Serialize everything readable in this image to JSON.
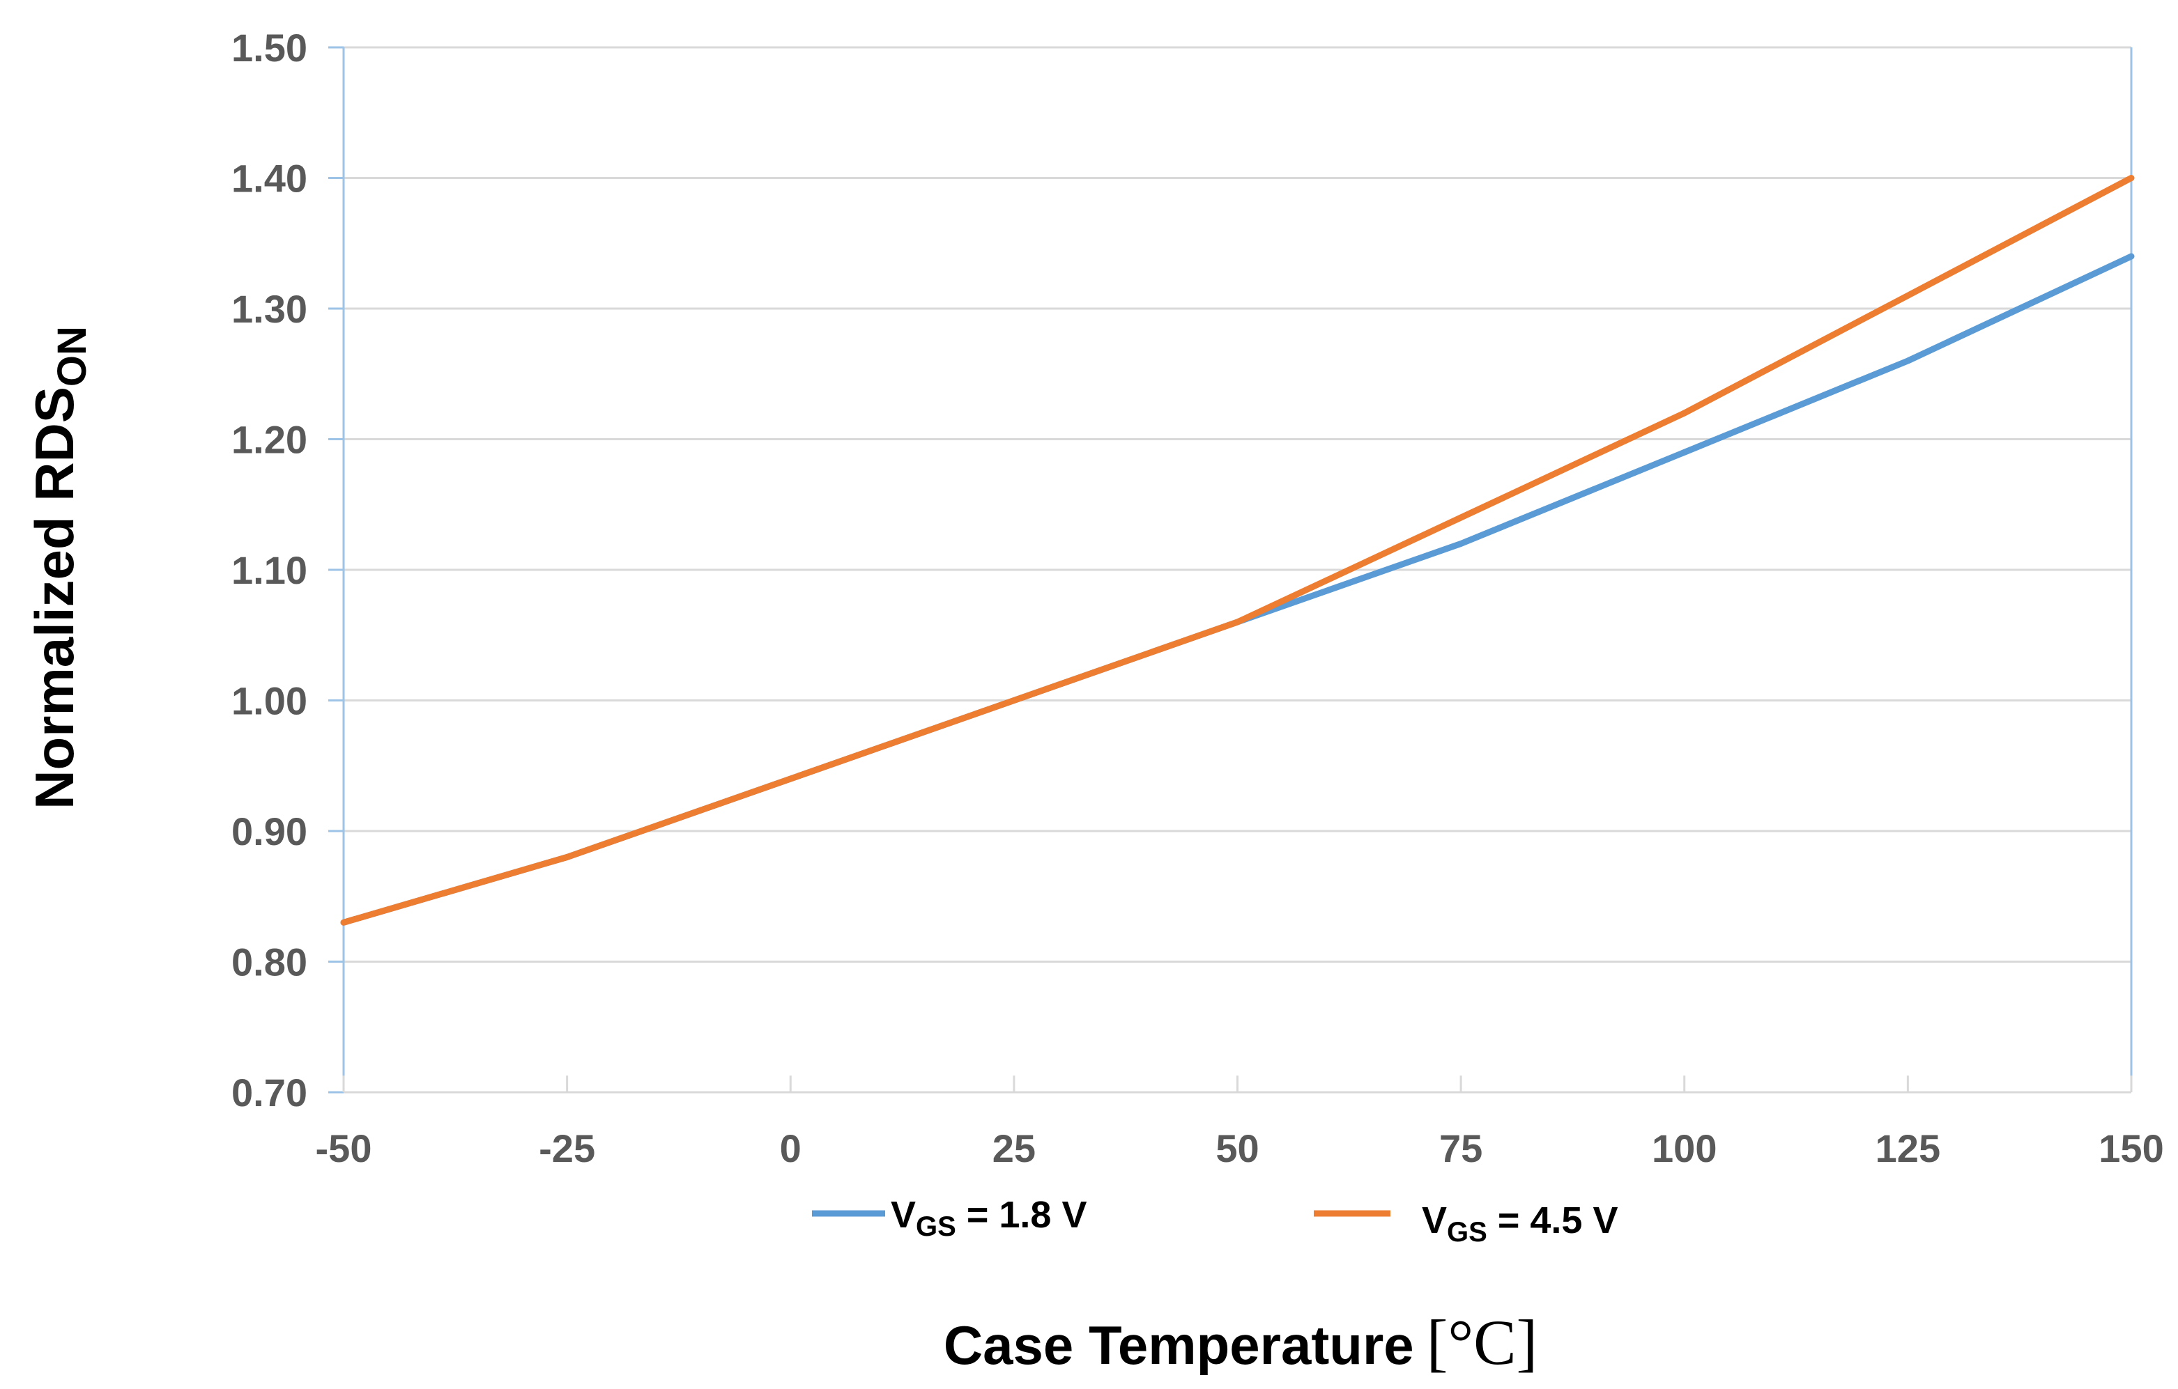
{
  "chart_data": {
    "type": "line",
    "title": "",
    "xlabel": "Case Temperature",
    "xlabel_unit": "[°C]",
    "ylabel_main": "Normalized RDS",
    "ylabel_sub": "ON",
    "xlim": [
      -50,
      150
    ],
    "ylim": [
      0.7,
      1.5
    ],
    "x_ticks": [
      -50,
      -25,
      0,
      25,
      50,
      75,
      100,
      125,
      150
    ],
    "x_tick_labels": [
      "-50",
      "-25",
      "0",
      "25",
      "50",
      "75",
      "100",
      "125",
      "150"
    ],
    "y_ticks": [
      0.7,
      0.8,
      0.9,
      1.0,
      1.1,
      1.2,
      1.3,
      1.4,
      1.5
    ],
    "y_tick_labels": [
      "0.70",
      "0.80",
      "0.90",
      "1.00",
      "1.10",
      "1.20",
      "1.30",
      "1.40",
      "1.50"
    ],
    "grid": true,
    "legend_position": "bottom",
    "x": [
      -50,
      -25,
      0,
      25,
      50,
      75,
      100,
      125,
      150
    ],
    "series": [
      {
        "name": "VGS = 1.8 V",
        "legend_main": "V",
        "legend_sub": "GS",
        "legend_rest": " = 1.8 V",
        "color": "#5B9BD5",
        "values": [
          0.83,
          0.88,
          0.94,
          1.0,
          1.06,
          1.12,
          1.19,
          1.26,
          1.34
        ]
      },
      {
        "name": "VGS = 4.5 V",
        "legend_main": "V",
        "legend_sub": "GS",
        "legend_rest": " = 4.5 V",
        "color": "#ED7D31",
        "values": [
          0.83,
          0.88,
          0.94,
          1.0,
          1.06,
          1.14,
          1.22,
          1.31,
          1.4
        ]
      }
    ]
  }
}
